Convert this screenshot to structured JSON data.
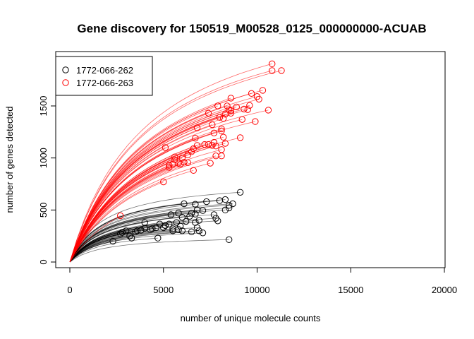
{
  "chart_data": {
    "type": "line",
    "title": "Gene discovery for 150519_M00528_0125_000000000-ACUAB",
    "xlabel": "number of unique molecule counts",
    "ylabel": "number of genes detected",
    "xlim": [
      0,
      20000
    ],
    "ylim": [
      0,
      1900
    ],
    "xticks": [
      "0",
      "5000",
      "10000",
      "15000",
      "20000"
    ],
    "yticks": [
      "0",
      "500",
      "1000",
      "1500"
    ],
    "legend": {
      "placement": "top-left"
    },
    "series": [
      {
        "name": "1772-066-262",
        "color": "#000000",
        "points": [
          [
            9100,
            670
          ],
          [
            8300,
            600
          ],
          [
            8000,
            590
          ],
          [
            8700,
            560
          ],
          [
            8500,
            545
          ],
          [
            7300,
            580
          ],
          [
            6100,
            560
          ],
          [
            6700,
            555
          ],
          [
            6800,
            500
          ],
          [
            7100,
            495
          ],
          [
            8300,
            500
          ],
          [
            8500,
            520
          ],
          [
            6500,
            470
          ],
          [
            5800,
            470
          ],
          [
            5400,
            455
          ],
          [
            6400,
            440
          ],
          [
            6700,
            460
          ],
          [
            7700,
            455
          ],
          [
            7800,
            420
          ],
          [
            7900,
            395
          ],
          [
            6900,
            400
          ],
          [
            6200,
            390
          ],
          [
            5700,
            380
          ],
          [
            5300,
            365
          ],
          [
            5900,
            345
          ],
          [
            6800,
            330
          ],
          [
            6900,
            300
          ],
          [
            6500,
            290
          ],
          [
            6000,
            300
          ],
          [
            5000,
            330
          ],
          [
            4600,
            330
          ],
          [
            4400,
            320
          ],
          [
            4300,
            310
          ],
          [
            4000,
            325
          ],
          [
            3600,
            300
          ],
          [
            3500,
            290
          ],
          [
            3000,
            300
          ],
          [
            3200,
            250
          ],
          [
            2700,
            270
          ],
          [
            2300,
            200
          ],
          [
            5800,
            310
          ],
          [
            5500,
            300
          ],
          [
            4700,
            230
          ],
          [
            4000,
            380
          ],
          [
            3300,
            230
          ],
          [
            8500,
            215
          ],
          [
            7100,
            280
          ],
          [
            6000,
            430
          ],
          [
            5100,
            350
          ],
          [
            4800,
            365
          ],
          [
            5500,
            320
          ],
          [
            3800,
            305
          ],
          [
            6700,
            380
          ],
          [
            2800,
            285
          ]
        ]
      },
      {
        "name": "1772-066-263",
        "color": "#ff0000",
        "points": [
          [
            10800,
            1905
          ],
          [
            11300,
            1840
          ],
          [
            10800,
            1840
          ],
          [
            10300,
            1650
          ],
          [
            10000,
            1590
          ],
          [
            10100,
            1565
          ],
          [
            9700,
            1620
          ],
          [
            9600,
            1505
          ],
          [
            9500,
            1465
          ],
          [
            9300,
            1470
          ],
          [
            8600,
            1575
          ],
          [
            8400,
            1500
          ],
          [
            8500,
            1465
          ],
          [
            8600,
            1455
          ],
          [
            8300,
            1420
          ],
          [
            8600,
            1430
          ],
          [
            8000,
            1390
          ],
          [
            7400,
            1430
          ],
          [
            7600,
            1320
          ],
          [
            8200,
            1380
          ],
          [
            6800,
            1290
          ],
          [
            6700,
            1190
          ],
          [
            7700,
            1240
          ],
          [
            8100,
            1260
          ],
          [
            8100,
            1280
          ],
          [
            8200,
            1200
          ],
          [
            7700,
            1150
          ],
          [
            7400,
            1130
          ],
          [
            7600,
            1120
          ],
          [
            7800,
            1115
          ],
          [
            7200,
            1130
          ],
          [
            6800,
            1120
          ],
          [
            6600,
            1090
          ],
          [
            6500,
            1060
          ],
          [
            6300,
            1030
          ],
          [
            6000,
            1000
          ],
          [
            5600,
            980
          ],
          [
            5600,
            1010
          ],
          [
            5300,
            910
          ],
          [
            5300,
            930
          ],
          [
            5100,
            1100
          ],
          [
            6100,
            960
          ],
          [
            6300,
            955
          ],
          [
            5800,
            950
          ],
          [
            5500,
            940
          ],
          [
            5900,
            940
          ],
          [
            6600,
            880
          ],
          [
            7500,
            950
          ],
          [
            7800,
            1020
          ],
          [
            8100,
            1080
          ],
          [
            8300,
            1140
          ],
          [
            5000,
            770
          ],
          [
            9100,
            1195
          ],
          [
            9900,
            1350
          ],
          [
            10600,
            1460
          ],
          [
            7900,
            1500
          ],
          [
            8900,
            1490
          ],
          [
            9200,
            1370
          ],
          [
            8100,
            1020
          ],
          [
            2700,
            445
          ]
        ]
      }
    ]
  }
}
